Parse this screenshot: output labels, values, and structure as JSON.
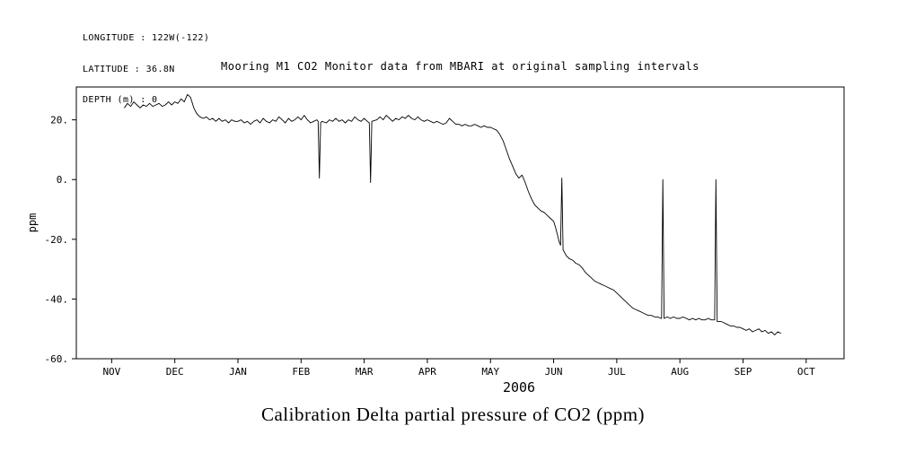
{
  "header": {
    "longitude": "LONGITUDE : 122W(-122)",
    "latitude": "LATITUDE : 36.8N",
    "depth": "DEPTH (m) : 0"
  },
  "caption": "Calibration Delta partial pressure of CO2 (ppm)",
  "chart_data": {
    "type": "line",
    "title": "Mooring M1 CO2 Monitor data from MBARI at original sampling intervals",
    "xlabel": "2006",
    "ylabel": "ppm",
    "x_tick_labels": [
      "NOV",
      "DEC",
      "JAN",
      "FEB",
      "MAR",
      "APR",
      "MAY",
      "JUN",
      "JUL",
      "AUG",
      "SEP",
      "OCT"
    ],
    "y_ticks": [
      20,
      0,
      -20,
      -40,
      -60
    ],
    "y_tick_labels": [
      "20.",
      "0.",
      "-20.",
      "-40.",
      "-60."
    ],
    "xlim": [
      -0.56,
      11.6
    ],
    "ylim": [
      -60,
      31
    ],
    "grid": false,
    "legend": "none",
    "line_color": "#000000",
    "series": [
      {
        "name": "calibration-delta-pco2",
        "points": [
          [
            0.2,
            24.0
          ],
          [
            0.25,
            25.5
          ],
          [
            0.3,
            24.5
          ],
          [
            0.35,
            26.0
          ],
          [
            0.4,
            25.0
          ],
          [
            0.45,
            24.0
          ],
          [
            0.5,
            25.0
          ],
          [
            0.55,
            24.5
          ],
          [
            0.6,
            25.5
          ],
          [
            0.65,
            24.5
          ],
          [
            0.7,
            25.0
          ],
          [
            0.75,
            25.5
          ],
          [
            0.8,
            24.5
          ],
          [
            0.85,
            25.0
          ],
          [
            0.9,
            26.0
          ],
          [
            0.95,
            25.0
          ],
          [
            1.0,
            26.0
          ],
          [
            1.05,
            25.5
          ],
          [
            1.1,
            27.0
          ],
          [
            1.15,
            26.0
          ],
          [
            1.2,
            28.5
          ],
          [
            1.25,
            27.5
          ],
          [
            1.3,
            24.0
          ],
          [
            1.35,
            22.0
          ],
          [
            1.4,
            21.0
          ],
          [
            1.45,
            20.5
          ],
          [
            1.5,
            21.0
          ],
          [
            1.55,
            20.0
          ],
          [
            1.6,
            20.5
          ],
          [
            1.65,
            19.5
          ],
          [
            1.7,
            20.5
          ],
          [
            1.75,
            19.5
          ],
          [
            1.8,
            20.0
          ],
          [
            1.85,
            19.0
          ],
          [
            1.9,
            20.0
          ],
          [
            1.95,
            19.5
          ],
          [
            2.0,
            19.5
          ],
          [
            2.05,
            20.0
          ],
          [
            2.1,
            19.0
          ],
          [
            2.15,
            19.5
          ],
          [
            2.2,
            18.5
          ],
          [
            2.25,
            19.5
          ],
          [
            2.3,
            20.0
          ],
          [
            2.35,
            19.0
          ],
          [
            2.4,
            20.5
          ],
          [
            2.45,
            19.5
          ],
          [
            2.5,
            19.0
          ],
          [
            2.55,
            20.0
          ],
          [
            2.6,
            19.5
          ],
          [
            2.65,
            21.0
          ],
          [
            2.7,
            20.0
          ],
          [
            2.75,
            19.0
          ],
          [
            2.8,
            20.5
          ],
          [
            2.85,
            19.5
          ],
          [
            2.9,
            20.0
          ],
          [
            2.95,
            21.0
          ],
          [
            3.0,
            20.0
          ],
          [
            3.05,
            21.5
          ],
          [
            3.1,
            20.0
          ],
          [
            3.15,
            19.0
          ],
          [
            3.2,
            19.5
          ],
          [
            3.25,
            20.0
          ],
          [
            3.27,
            19.5
          ],
          [
            3.29,
            0.5
          ],
          [
            3.31,
            19.0
          ],
          [
            3.33,
            19.5
          ],
          [
            3.4,
            19.0
          ],
          [
            3.45,
            20.0
          ],
          [
            3.5,
            19.5
          ],
          [
            3.55,
            20.5
          ],
          [
            3.6,
            19.5
          ],
          [
            3.65,
            20.0
          ],
          [
            3.7,
            19.0
          ],
          [
            3.75,
            20.0
          ],
          [
            3.8,
            19.5
          ],
          [
            3.85,
            21.0
          ],
          [
            3.9,
            20.0
          ],
          [
            3.95,
            19.5
          ],
          [
            4.0,
            20.5
          ],
          [
            4.05,
            19.5
          ],
          [
            4.08,
            19.0
          ],
          [
            4.1,
            -1.0
          ],
          [
            4.12,
            19.5
          ],
          [
            4.2,
            20.0
          ],
          [
            4.25,
            21.0
          ],
          [
            4.3,
            20.0
          ],
          [
            4.35,
            21.5
          ],
          [
            4.4,
            20.5
          ],
          [
            4.45,
            19.5
          ],
          [
            4.5,
            20.5
          ],
          [
            4.55,
            20.0
          ],
          [
            4.6,
            21.0
          ],
          [
            4.65,
            20.5
          ],
          [
            4.7,
            21.5
          ],
          [
            4.75,
            20.5
          ],
          [
            4.8,
            20.0
          ],
          [
            4.85,
            21.0
          ],
          [
            4.9,
            20.0
          ],
          [
            4.95,
            19.5
          ],
          [
            5.0,
            20.0
          ],
          [
            5.05,
            19.5
          ],
          [
            5.1,
            19.0
          ],
          [
            5.15,
            19.5
          ],
          [
            5.2,
            19.0
          ],
          [
            5.25,
            18.5
          ],
          [
            5.3,
            19.0
          ],
          [
            5.35,
            20.5
          ],
          [
            5.4,
            19.5
          ],
          [
            5.45,
            18.5
          ],
          [
            5.5,
            18.5
          ],
          [
            5.55,
            18.0
          ],
          [
            5.6,
            18.5
          ],
          [
            5.65,
            18.0
          ],
          [
            5.7,
            18.0
          ],
          [
            5.75,
            18.5
          ],
          [
            5.8,
            18.0
          ],
          [
            5.85,
            17.5
          ],
          [
            5.9,
            18.0
          ],
          [
            5.95,
            17.5
          ],
          [
            6.0,
            17.5
          ],
          [
            6.05,
            17.0
          ],
          [
            6.1,
            16.5
          ],
          [
            6.15,
            15.0
          ],
          [
            6.2,
            13.0
          ],
          [
            6.25,
            10.0
          ],
          [
            6.3,
            7.0
          ],
          [
            6.35,
            4.5
          ],
          [
            6.4,
            2.0
          ],
          [
            6.45,
            0.5
          ],
          [
            6.5,
            1.5
          ],
          [
            6.55,
            -1.0
          ],
          [
            6.6,
            -4.0
          ],
          [
            6.65,
            -6.5
          ],
          [
            6.7,
            -8.5
          ],
          [
            6.75,
            -9.5
          ],
          [
            6.8,
            -10.5
          ],
          [
            6.85,
            -11.0
          ],
          [
            6.9,
            -12.0
          ],
          [
            6.95,
            -13.0
          ],
          [
            7.0,
            -14.0
          ],
          [
            7.03,
            -16.0
          ],
          [
            7.06,
            -18.5
          ],
          [
            7.09,
            -21.0
          ],
          [
            7.11,
            -22.0
          ],
          [
            7.13,
            0.5
          ],
          [
            7.15,
            -23.5
          ],
          [
            7.2,
            -25.5
          ],
          [
            7.25,
            -26.5
          ],
          [
            7.3,
            -27.0
          ],
          [
            7.35,
            -28.0
          ],
          [
            7.4,
            -28.5
          ],
          [
            7.45,
            -29.5
          ],
          [
            7.5,
            -31.0
          ],
          [
            7.55,
            -32.0
          ],
          [
            7.6,
            -33.0
          ],
          [
            7.65,
            -34.0
          ],
          [
            7.7,
            -34.5
          ],
          [
            7.75,
            -35.0
          ],
          [
            7.8,
            -35.5
          ],
          [
            7.85,
            -36.0
          ],
          [
            7.9,
            -36.5
          ],
          [
            7.95,
            -37.0
          ],
          [
            8.0,
            -38.0
          ],
          [
            8.05,
            -39.0
          ],
          [
            8.1,
            -40.0
          ],
          [
            8.15,
            -41.0
          ],
          [
            8.2,
            -42.0
          ],
          [
            8.25,
            -43.0
          ],
          [
            8.3,
            -43.5
          ],
          [
            8.35,
            -44.0
          ],
          [
            8.4,
            -44.5
          ],
          [
            8.45,
            -45.0
          ],
          [
            8.5,
            -45.5
          ],
          [
            8.55,
            -45.5
          ],
          [
            8.6,
            -46.0
          ],
          [
            8.65,
            -46.0
          ],
          [
            8.7,
            -46.5
          ],
          [
            8.71,
            -46.5
          ],
          [
            8.73,
            0.0
          ],
          [
            8.75,
            -46.5
          ],
          [
            8.8,
            -46.0
          ],
          [
            8.85,
            -46.5
          ],
          [
            8.9,
            -46.0
          ],
          [
            8.95,
            -46.5
          ],
          [
            9.0,
            -46.5
          ],
          [
            9.05,
            -46.0
          ],
          [
            9.1,
            -46.5
          ],
          [
            9.15,
            -47.0
          ],
          [
            9.2,
            -46.5
          ],
          [
            9.25,
            -47.0
          ],
          [
            9.3,
            -46.5
          ],
          [
            9.35,
            -47.0
          ],
          [
            9.4,
            -47.0
          ],
          [
            9.45,
            -46.5
          ],
          [
            9.5,
            -47.0
          ],
          [
            9.55,
            -47.0
          ],
          [
            9.57,
            0.0
          ],
          [
            9.59,
            -47.5
          ],
          [
            9.65,
            -47.5
          ],
          [
            9.7,
            -48.0
          ],
          [
            9.75,
            -48.5
          ],
          [
            9.8,
            -49.0
          ],
          [
            9.85,
            -49.0
          ],
          [
            9.9,
            -49.5
          ],
          [
            9.95,
            -49.5
          ],
          [
            10.0,
            -50.0
          ],
          [
            10.05,
            -50.5
          ],
          [
            10.1,
            -50.0
          ],
          [
            10.15,
            -51.0
          ],
          [
            10.2,
            -50.5
          ],
          [
            10.25,
            -50.0
          ],
          [
            10.3,
            -51.0
          ],
          [
            10.35,
            -50.5
          ],
          [
            10.4,
            -51.5
          ],
          [
            10.45,
            -51.0
          ],
          [
            10.5,
            -52.0
          ],
          [
            10.55,
            -51.0
          ],
          [
            10.6,
            -51.5
          ]
        ]
      }
    ]
  }
}
